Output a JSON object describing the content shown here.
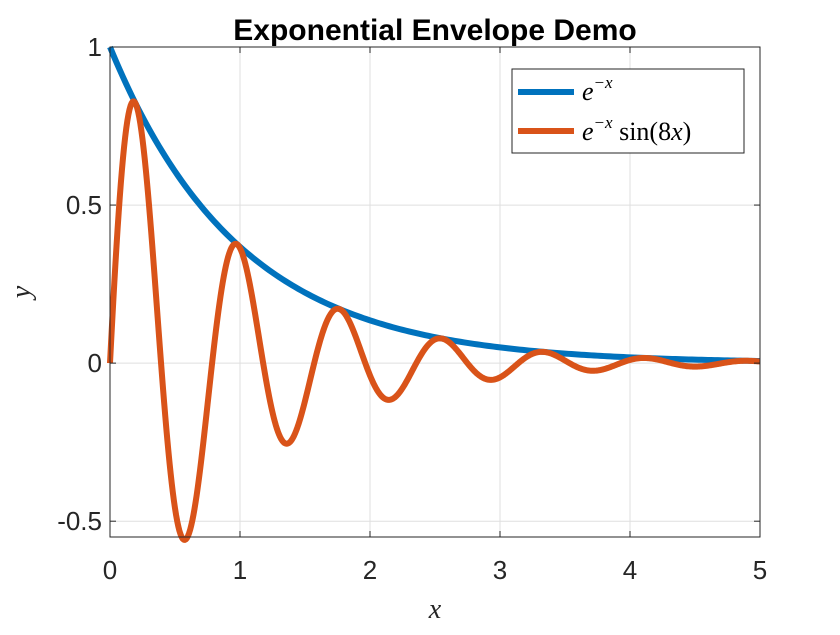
{
  "chart_data": {
    "type": "line",
    "title": "Exponential Envelope Demo",
    "xlabel": "x",
    "ylabel": "y",
    "xlim": [
      0,
      5
    ],
    "ylim": [
      -0.55,
      1
    ],
    "xticks": [
      0,
      1,
      2,
      3,
      4,
      5
    ],
    "xtick_labels": [
      "0",
      "1",
      "2",
      "3",
      "4",
      "5"
    ],
    "yticks": [
      -0.5,
      0,
      0.5,
      1
    ],
    "ytick_labels": [
      "-0.5",
      "0",
      "0.5",
      "1"
    ],
    "grid": true,
    "legend_position": "top-right",
    "series": [
      {
        "name": "e^{-x}",
        "color": "#0072BD",
        "x": [
          0,
          0.25,
          0.5,
          0.75,
          1,
          1.25,
          1.5,
          1.75,
          2,
          2.5,
          3,
          3.5,
          4,
          4.5,
          5
        ],
        "y": [
          1,
          0.78,
          0.61,
          0.47,
          0.37,
          0.29,
          0.22,
          0.17,
          0.14,
          0.08,
          0.05,
          0.03,
          0.02,
          0.01,
          0.01
        ]
      },
      {
        "name": "e^{-x} sin(8x)",
        "color": "#D95319",
        "x": [
          0,
          0.1,
          0.19,
          0.3,
          0.4,
          0.58,
          0.75,
          0.97,
          1.15,
          1.36,
          1.55,
          1.75,
          1.95,
          2.15,
          2.35,
          2.54,
          2.74,
          2.93,
          3.13,
          3.33,
          3.52,
          3.72,
          3.91,
          4.11,
          4.3,
          4.5,
          4.7,
          4.9,
          5
        ],
        "y": [
          0,
          0.65,
          0.83,
          0.5,
          -0.04,
          -0.56,
          -0.09,
          0.38,
          0.03,
          -0.25,
          -0.03,
          0.17,
          0.01,
          -0.11,
          0.0,
          0.08,
          0.0,
          -0.05,
          0.0,
          0.04,
          0.0,
          -0.02,
          0.0,
          0.02,
          0.0,
          -0.01,
          0.0,
          0.01,
          0.0
        ]
      }
    ]
  }
}
